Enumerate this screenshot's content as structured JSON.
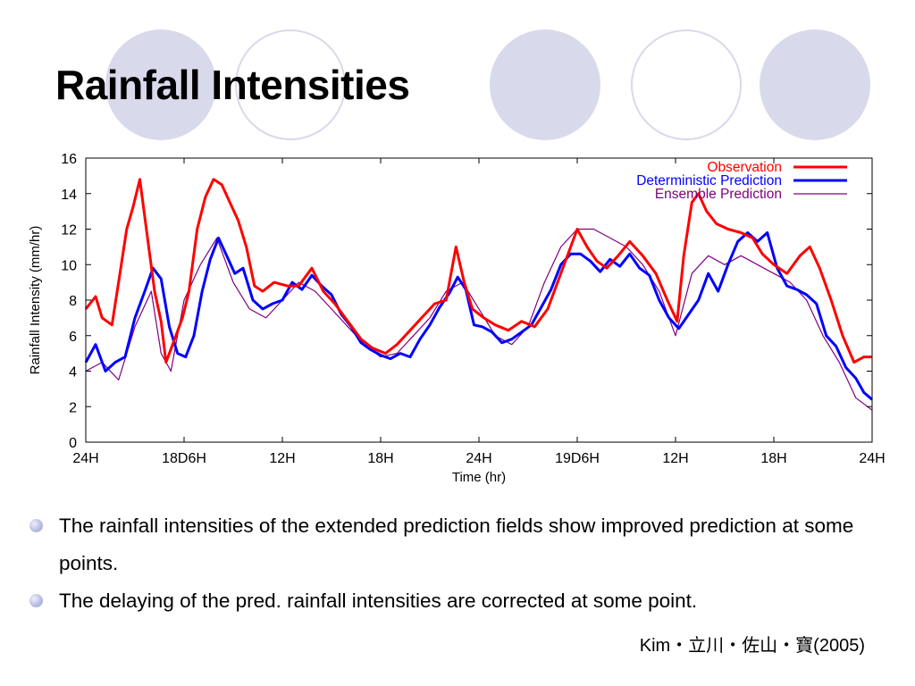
{
  "slide": {
    "title": "Rainfall Intensities",
    "bullets": [
      "The rainfall intensities of the extended prediction fields show improved prediction at some points.",
      "The delaying of the pred. rainfall intensities are corrected at some point."
    ],
    "citation": "Kim・立川・佐山・寶(2005)"
  },
  "colors": {
    "deco_circle": "#d9d9ec",
    "bullet": "#a7acdc",
    "observation": "#ff0000",
    "deterministic": "#0000ff",
    "ensemble": "#800080"
  },
  "chart_data": {
    "type": "line",
    "title": "",
    "xlabel": "Time (hr)",
    "ylabel": "Rainfall Intensity (mm/hr)",
    "xlim": [
      0,
      48
    ],
    "ylim": [
      0,
      16
    ],
    "x_ticks": [
      {
        "x": 0,
        "label": "24H"
      },
      {
        "x": 6,
        "label": "18D6H"
      },
      {
        "x": 12,
        "label": "12H"
      },
      {
        "x": 18,
        "label": "18H"
      },
      {
        "x": 24,
        "label": "24H"
      },
      {
        "x": 30,
        "label": "19D6H"
      },
      {
        "x": 36,
        "label": "12H"
      },
      {
        "x": 42,
        "label": "18H"
      },
      {
        "x": 48,
        "label": "24H"
      }
    ],
    "y_ticks": [
      0,
      2,
      4,
      6,
      8,
      10,
      12,
      14,
      16
    ],
    "grid": false,
    "legend_position": "top-right",
    "series": [
      {
        "name": "Observation",
        "color": "#ff0000",
        "style": "thick",
        "points": [
          [
            0,
            7.5
          ],
          [
            0.6,
            8.2
          ],
          [
            1.0,
            7
          ],
          [
            1.6,
            6.6
          ],
          [
            2.0,
            9
          ],
          [
            2.5,
            12
          ],
          [
            2.9,
            13.3
          ],
          [
            3.3,
            14.8
          ],
          [
            3.7,
            12
          ],
          [
            4.2,
            8.5
          ],
          [
            4.6,
            6.8
          ],
          [
            4.9,
            4.5
          ],
          [
            5.3,
            5.5
          ],
          [
            5.9,
            7
          ],
          [
            6.3,
            8.5
          ],
          [
            6.8,
            12
          ],
          [
            7.3,
            13.8
          ],
          [
            7.8,
            14.8
          ],
          [
            8.3,
            14.5
          ],
          [
            8.8,
            13.5
          ],
          [
            9.3,
            12.5
          ],
          [
            9.8,
            11
          ],
          [
            10.3,
            8.8
          ],
          [
            10.8,
            8.5
          ],
          [
            11.5,
            9
          ],
          [
            12.3,
            8.8
          ],
          [
            13.0,
            8.8
          ],
          [
            13.8,
            9.8
          ],
          [
            14.5,
            8.5
          ],
          [
            15.2,
            7.8
          ],
          [
            16.0,
            6.8
          ],
          [
            16.8,
            5.8
          ],
          [
            17.5,
            5.3
          ],
          [
            18.3,
            5
          ],
          [
            19.0,
            5.5
          ],
          [
            19.8,
            6.3
          ],
          [
            20.5,
            7
          ],
          [
            21.3,
            7.8
          ],
          [
            22.0,
            8
          ],
          [
            22.6,
            11
          ],
          [
            23.1,
            9
          ],
          [
            23.6,
            7.5
          ],
          [
            24.3,
            7
          ],
          [
            25.0,
            6.6
          ],
          [
            25.8,
            6.3
          ],
          [
            26.6,
            6.8
          ],
          [
            27.4,
            6.5
          ],
          [
            28.2,
            7.5
          ],
          [
            28.8,
            9
          ],
          [
            29.4,
            10.5
          ],
          [
            30.0,
            12
          ],
          [
            30.6,
            11
          ],
          [
            31.2,
            10.2
          ],
          [
            31.8,
            9.8
          ],
          [
            32.5,
            10.5
          ],
          [
            33.2,
            11.3
          ],
          [
            34.0,
            10.5
          ],
          [
            34.8,
            9.5
          ],
          [
            35.5,
            8
          ],
          [
            36.1,
            6.8
          ],
          [
            36.5,
            10.5
          ],
          [
            37.0,
            13.5
          ],
          [
            37.4,
            14
          ],
          [
            37.9,
            13
          ],
          [
            38.5,
            12.3
          ],
          [
            39.2,
            12
          ],
          [
            40.0,
            11.8
          ],
          [
            40.7,
            11.5
          ],
          [
            41.3,
            10.6
          ],
          [
            42.0,
            10
          ],
          [
            42.8,
            9.5
          ],
          [
            43.6,
            10.5
          ],
          [
            44.2,
            11
          ],
          [
            44.8,
            9.8
          ],
          [
            45.5,
            8
          ],
          [
            46.2,
            6
          ],
          [
            46.9,
            4.5
          ],
          [
            47.5,
            4.8
          ],
          [
            48.0,
            4.8
          ]
        ]
      },
      {
        "name": "Deterministic Prediction",
        "color": "#0000ff",
        "style": "thick",
        "points": [
          [
            0,
            4.5
          ],
          [
            0.6,
            5.5
          ],
          [
            1.2,
            4
          ],
          [
            1.8,
            4.5
          ],
          [
            2.4,
            4.8
          ],
          [
            3.0,
            7
          ],
          [
            3.6,
            8.5
          ],
          [
            4.1,
            9.8
          ],
          [
            4.6,
            9.2
          ],
          [
            5.1,
            6.5
          ],
          [
            5.6,
            5
          ],
          [
            6.1,
            4.8
          ],
          [
            6.6,
            6
          ],
          [
            7.1,
            8.5
          ],
          [
            7.6,
            10.3
          ],
          [
            8.1,
            11.5
          ],
          [
            8.6,
            10.5
          ],
          [
            9.1,
            9.5
          ],
          [
            9.6,
            9.8
          ],
          [
            10.2,
            8
          ],
          [
            10.8,
            7.5
          ],
          [
            11.4,
            7.8
          ],
          [
            12.0,
            8
          ],
          [
            12.6,
            9
          ],
          [
            13.2,
            8.6
          ],
          [
            13.8,
            9.4
          ],
          [
            14.4,
            8.8
          ],
          [
            15.0,
            8.3
          ],
          [
            15.6,
            7.2
          ],
          [
            16.2,
            6.5
          ],
          [
            16.8,
            5.6
          ],
          [
            17.4,
            5.2
          ],
          [
            18.0,
            4.9
          ],
          [
            18.6,
            4.7
          ],
          [
            19.2,
            5
          ],
          [
            19.8,
            4.8
          ],
          [
            20.4,
            5.8
          ],
          [
            21.0,
            6.6
          ],
          [
            21.6,
            7.6
          ],
          [
            22.2,
            8.4
          ],
          [
            22.7,
            9.3
          ],
          [
            23.2,
            8.6
          ],
          [
            23.7,
            6.6
          ],
          [
            24.2,
            6.5
          ],
          [
            24.8,
            6.2
          ],
          [
            25.4,
            5.6
          ],
          [
            26.0,
            5.8
          ],
          [
            26.6,
            6.2
          ],
          [
            27.2,
            6.6
          ],
          [
            27.8,
            7.6
          ],
          [
            28.4,
            8.6
          ],
          [
            29.0,
            10
          ],
          [
            29.6,
            10.6
          ],
          [
            30.2,
            10.6
          ],
          [
            30.8,
            10.2
          ],
          [
            31.4,
            9.6
          ],
          [
            32.0,
            10.3
          ],
          [
            32.6,
            9.9
          ],
          [
            33.2,
            10.6
          ],
          [
            33.8,
            9.8
          ],
          [
            34.4,
            9.4
          ],
          [
            35.0,
            8
          ],
          [
            35.6,
            7
          ],
          [
            36.2,
            6.4
          ],
          [
            36.8,
            7.2
          ],
          [
            37.4,
            8
          ],
          [
            38.0,
            9.5
          ],
          [
            38.6,
            8.5
          ],
          [
            39.2,
            10
          ],
          [
            39.8,
            11.3
          ],
          [
            40.4,
            11.8
          ],
          [
            41.0,
            11.3
          ],
          [
            41.6,
            11.8
          ],
          [
            42.2,
            9.8
          ],
          [
            42.8,
            8.8
          ],
          [
            43.4,
            8.6
          ],
          [
            44.0,
            8.3
          ],
          [
            44.6,
            7.8
          ],
          [
            45.2,
            6
          ],
          [
            45.8,
            5.4
          ],
          [
            46.4,
            4.2
          ],
          [
            47.0,
            3.6
          ],
          [
            47.5,
            2.8
          ],
          [
            48.0,
            2.4
          ]
        ]
      },
      {
        "name": "Ensemble Prediction",
        "color": "#800080",
        "style": "thin",
        "points": [
          [
            0,
            4
          ],
          [
            1.0,
            4.5
          ],
          [
            2.0,
            3.5
          ],
          [
            3.0,
            6.5
          ],
          [
            4.0,
            8.5
          ],
          [
            4.6,
            5
          ],
          [
            5.2,
            4
          ],
          [
            6.0,
            8
          ],
          [
            7.0,
            10
          ],
          [
            8.0,
            11.5
          ],
          [
            9.0,
            9
          ],
          [
            10.0,
            7.5
          ],
          [
            11.0,
            7
          ],
          [
            12.0,
            8
          ],
          [
            13.0,
            9
          ],
          [
            14.0,
            8.5
          ],
          [
            15.0,
            7.5
          ],
          [
            16.0,
            6.5
          ],
          [
            17.0,
            5.5
          ],
          [
            18.0,
            4.8
          ],
          [
            19.0,
            5
          ],
          [
            20.0,
            6
          ],
          [
            21.0,
            7
          ],
          [
            22.0,
            8.5
          ],
          [
            23.0,
            9
          ],
          [
            24.0,
            7.5
          ],
          [
            25.0,
            6
          ],
          [
            26.0,
            5.5
          ],
          [
            27.0,
            6.5
          ],
          [
            28.0,
            9
          ],
          [
            29.0,
            11
          ],
          [
            30.0,
            12
          ],
          [
            31.0,
            12
          ],
          [
            32.0,
            11.5
          ],
          [
            33.0,
            11
          ],
          [
            34.0,
            10
          ],
          [
            35.0,
            8.5
          ],
          [
            36.0,
            6
          ],
          [
            37.0,
            9.5
          ],
          [
            38.0,
            10.5
          ],
          [
            39.0,
            10
          ],
          [
            40.0,
            10.5
          ],
          [
            41.0,
            10
          ],
          [
            42.0,
            9.5
          ],
          [
            43.0,
            9
          ],
          [
            44.0,
            8
          ],
          [
            45.0,
            6
          ],
          [
            46.0,
            4.5
          ],
          [
            47.0,
            2.5
          ],
          [
            48.0,
            1.8
          ]
        ]
      }
    ]
  }
}
